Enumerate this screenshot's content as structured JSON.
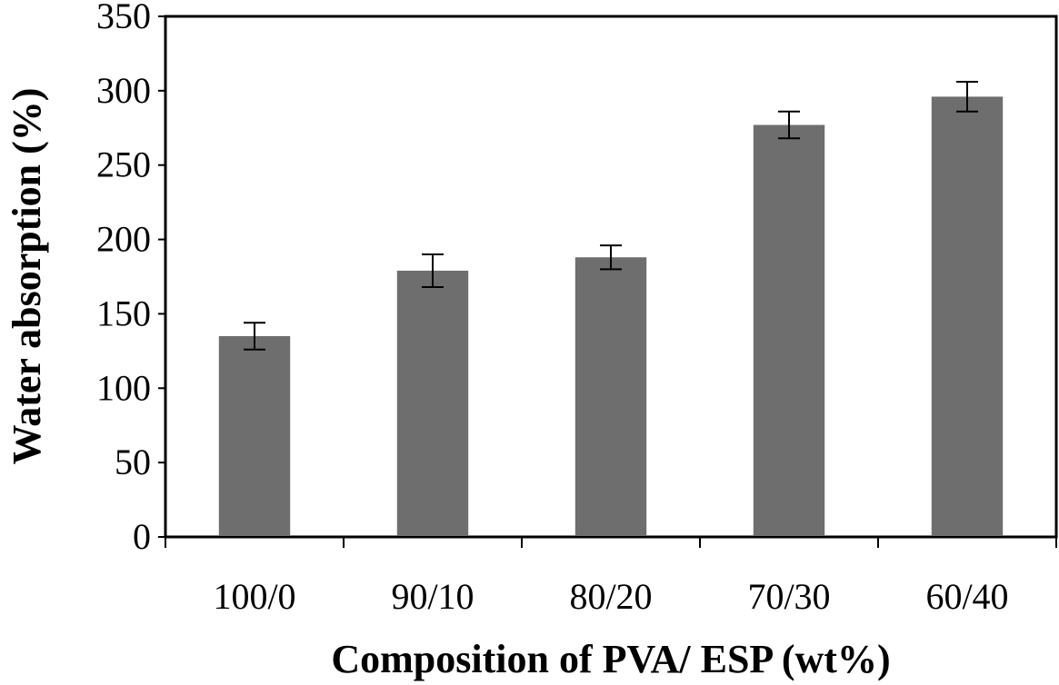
{
  "chart_data": {
    "type": "bar",
    "title": "",
    "xlabel": "Composition of PVA/ ESP (wt%)",
    "ylabel": "Water absorption (%)",
    "categories": [
      "100/0",
      "90/10",
      "80/20",
      "70/30",
      "60/40"
    ],
    "values": [
      135,
      179,
      188,
      277,
      296
    ],
    "errors": [
      9,
      11,
      8,
      9,
      10
    ],
    "ylim": [
      0,
      350
    ],
    "yticks": [
      0,
      50,
      100,
      150,
      200,
      250,
      300,
      350
    ],
    "ytick_labels": [
      "0",
      "50",
      "100",
      "150",
      "200",
      "250",
      "300",
      "350"
    ],
    "bar_color": "#6e6e6e",
    "grid": false,
    "legend": "none"
  }
}
